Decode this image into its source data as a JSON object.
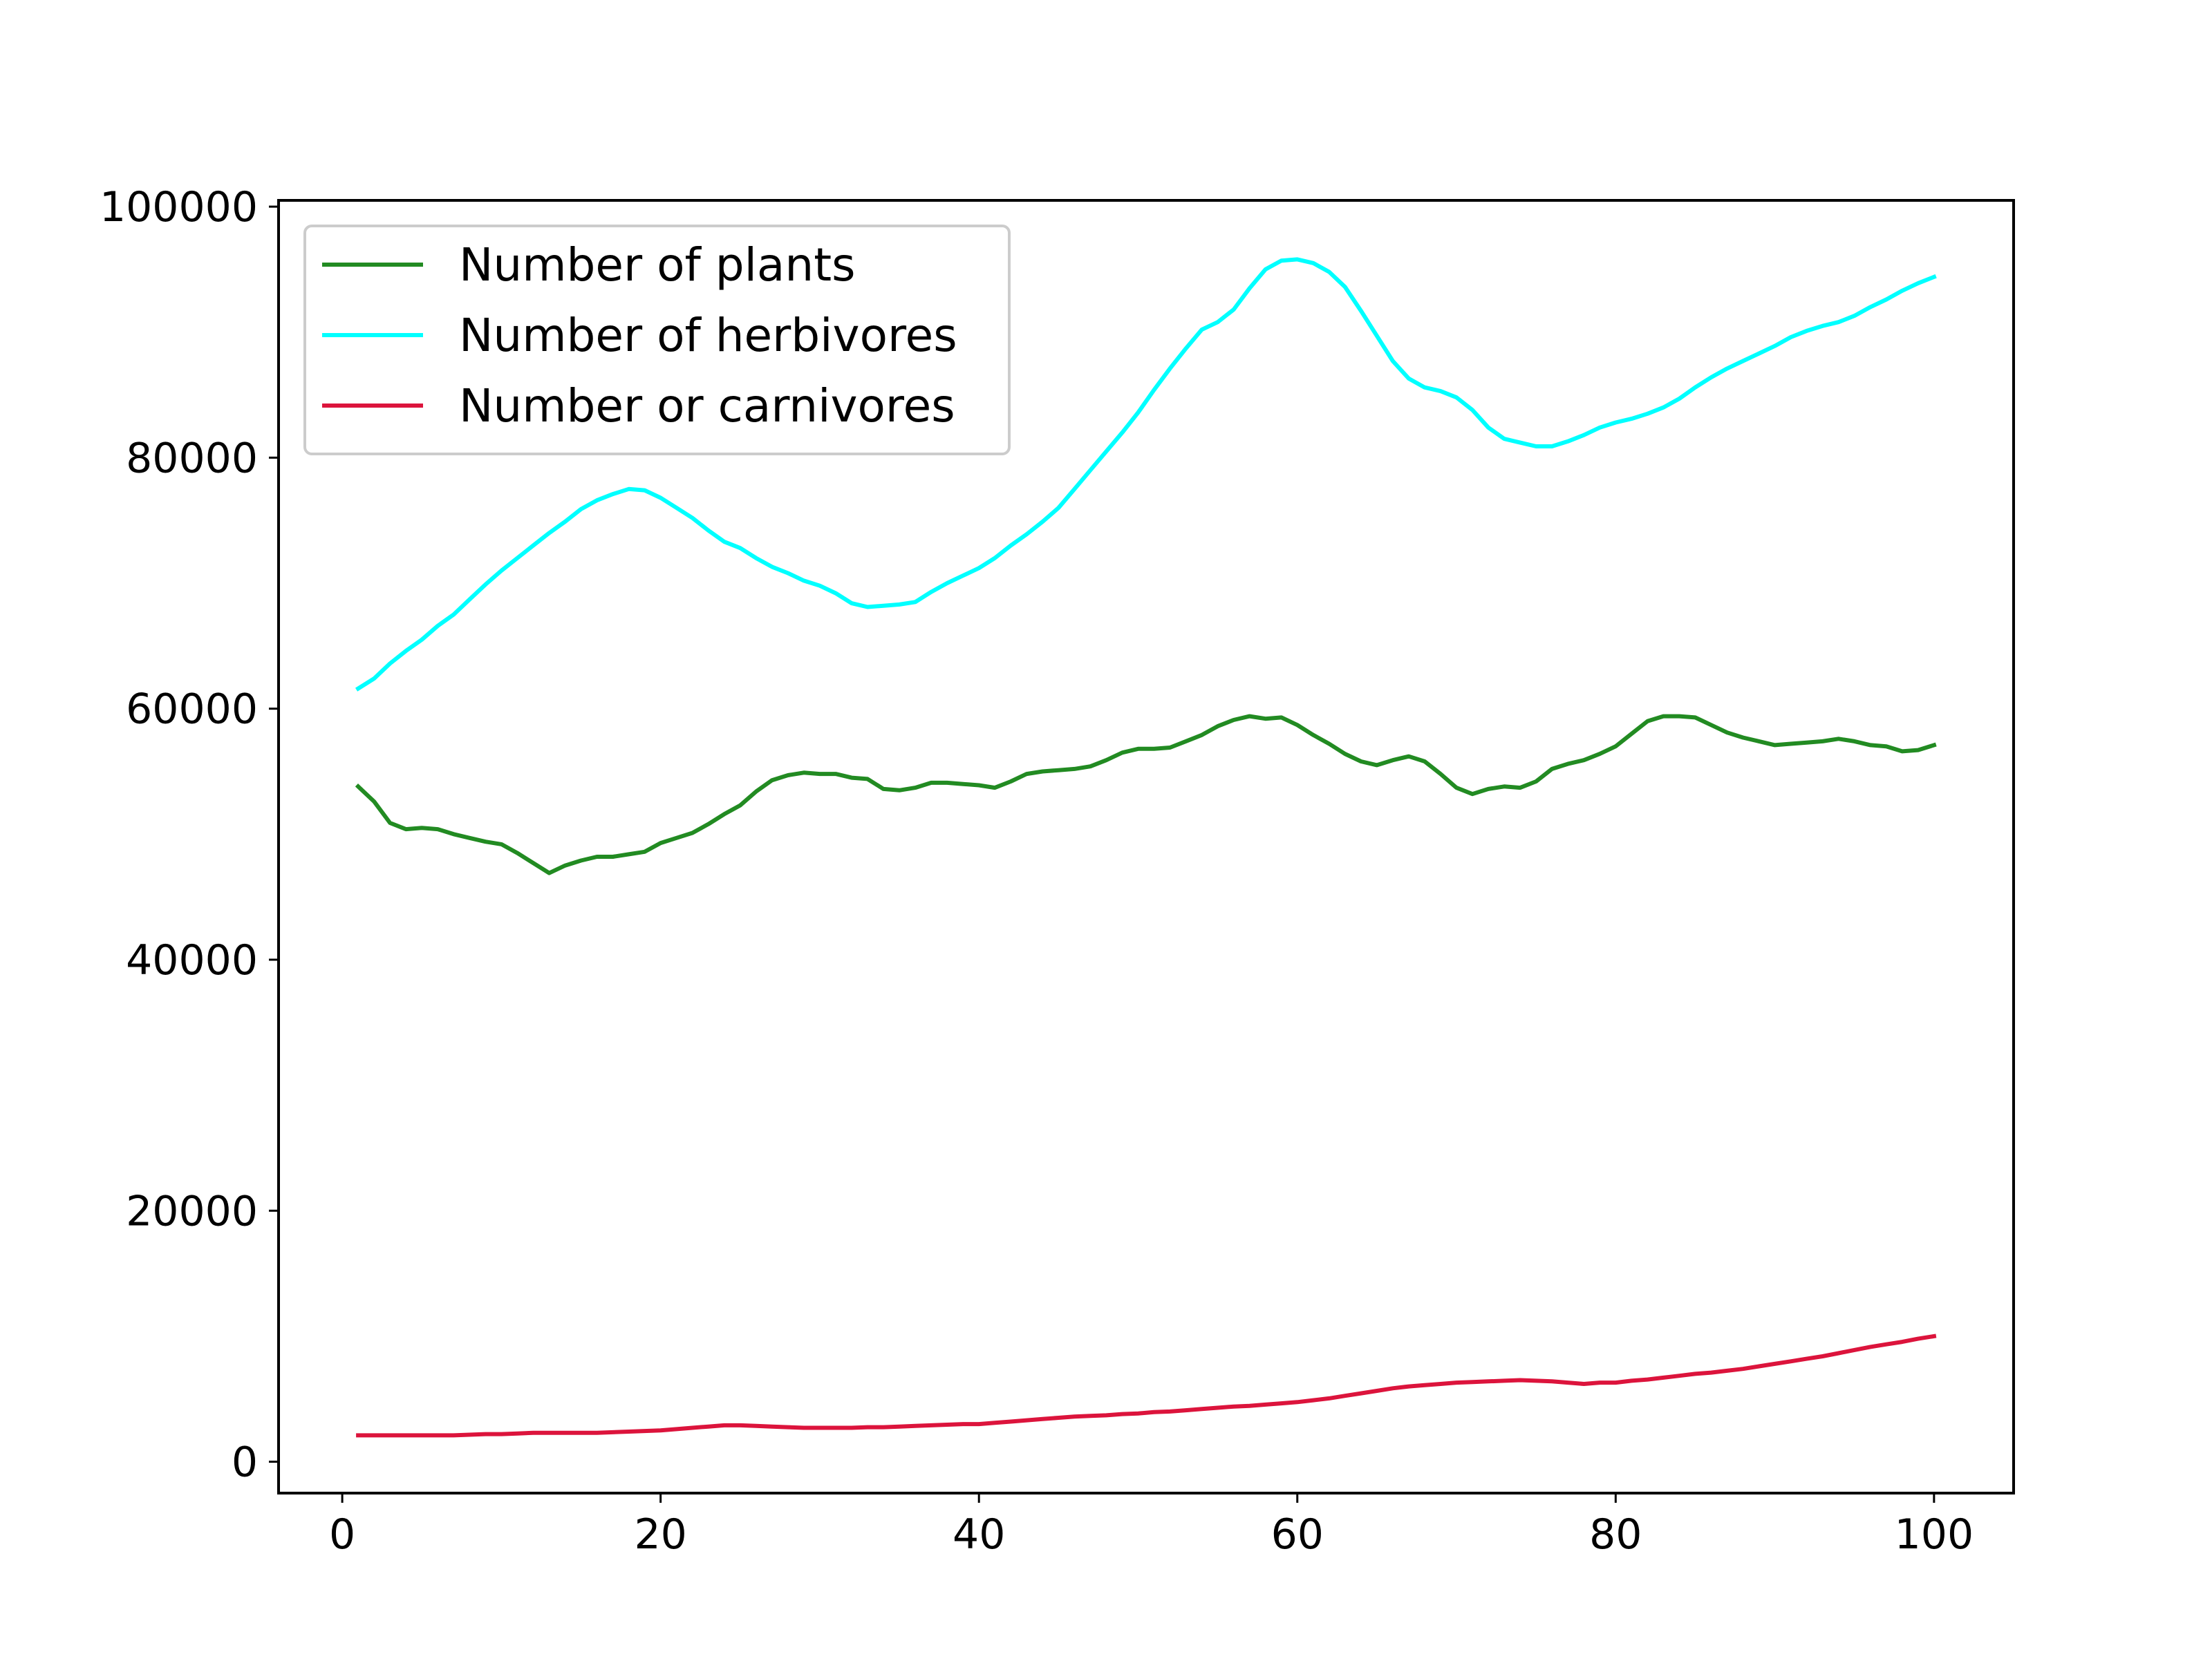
{
  "chart_data": {
    "type": "line",
    "title": "",
    "xlabel": "",
    "ylabel": "",
    "xlim": [
      -4,
      105
    ],
    "ylim": [
      -2500,
      100500
    ],
    "grid": false,
    "legend_position": "upper-left",
    "x_ticks": [
      0,
      20,
      40,
      60,
      80,
      100
    ],
    "x_tick_labels": [
      "0",
      "20",
      "40",
      "60",
      "80",
      "100"
    ],
    "y_ticks": [
      0,
      20000,
      40000,
      60000,
      80000,
      100000
    ],
    "y_tick_labels": [
      "0",
      "20000",
      "40000",
      "60000",
      "80000",
      "100000"
    ],
    "x": [
      1,
      2,
      3,
      4,
      5,
      6,
      7,
      8,
      9,
      10,
      11,
      12,
      13,
      14,
      15,
      16,
      17,
      18,
      19,
      20,
      21,
      22,
      23,
      24,
      25,
      26,
      27,
      28,
      29,
      30,
      31,
      32,
      33,
      34,
      35,
      36,
      37,
      38,
      39,
      40,
      41,
      42,
      43,
      44,
      45,
      46,
      47,
      48,
      49,
      50,
      51,
      52,
      53,
      54,
      55,
      56,
      57,
      58,
      59,
      60,
      61,
      62,
      63,
      64,
      65,
      66,
      67,
      68,
      69,
      70,
      71,
      72,
      73,
      74,
      75,
      76,
      77,
      78,
      79,
      80,
      81,
      82,
      83,
      84,
      85,
      86,
      87,
      88,
      89,
      90,
      91,
      92,
      93,
      94,
      95,
      96,
      97,
      98,
      99,
      100
    ],
    "series": [
      {
        "name": "Number of plants",
        "color": "#228b22",
        "values": [
          53800,
          52600,
          50900,
          50400,
          50500,
          50400,
          50000,
          49700,
          49400,
          49200,
          48500,
          47700,
          46900,
          47500,
          47900,
          48200,
          48200,
          48400,
          48600,
          49300,
          49700,
          50100,
          50800,
          51600,
          52300,
          53400,
          54300,
          54700,
          54900,
          54800,
          54800,
          54500,
          54400,
          53600,
          53500,
          53700,
          54100,
          54100,
          54000,
          53900,
          53700,
          54200,
          54800,
          55000,
          55100,
          55200,
          55400,
          55900,
          56500,
          56800,
          56800,
          56900,
          57400,
          57900,
          58600,
          59100,
          59400,
          59200,
          59300,
          58700,
          57900,
          57200,
          56400,
          55800,
          55500,
          55900,
          56200,
          55800,
          54800,
          53700,
          53200,
          53600,
          53800,
          53700,
          54200,
          55200,
          55600,
          55900,
          56400,
          57000,
          58000,
          59000,
          59400,
          59400,
          59300,
          58700,
          58100,
          57700,
          57400,
          57100,
          57200,
          57300,
          57400,
          57600,
          57400,
          57100,
          57000,
          56600,
          56700,
          57100
        ]
      },
      {
        "name": "Number of herbivores",
        "color": "#00ffff",
        "values": [
          61600,
          62400,
          63600,
          64600,
          65500,
          66600,
          67500,
          68700,
          69900,
          71000,
          72000,
          73000,
          74000,
          74900,
          75900,
          76600,
          77100,
          77500,
          77400,
          76800,
          76000,
          75200,
          74200,
          73300,
          72800,
          72000,
          71300,
          70800,
          70200,
          69800,
          69200,
          68400,
          68100,
          68200,
          68300,
          68500,
          69300,
          70000,
          70600,
          71200,
          72000,
          73000,
          73900,
          74900,
          76000,
          77500,
          79000,
          80500,
          82000,
          83600,
          85400,
          87100,
          88700,
          90200,
          90800,
          91800,
          93500,
          95000,
          95700,
          95800,
          95500,
          94800,
          93600,
          91700,
          89700,
          87700,
          86300,
          85600,
          85300,
          84800,
          83800,
          82400,
          81500,
          81200,
          80900,
          80900,
          81300,
          81800,
          82400,
          82800,
          83100,
          83500,
          84000,
          84700,
          85600,
          86400,
          87100,
          87700,
          88300,
          88900,
          89600,
          90100,
          90500,
          90800,
          91300,
          92000,
          92600,
          93300,
          93900,
          94400
        ]
      },
      {
        "name": "Number or carnivores",
        "color": "#dc143c",
        "values": [
          2100,
          2100,
          2100,
          2100,
          2100,
          2100,
          2100,
          2150,
          2200,
          2200,
          2250,
          2300,
          2300,
          2300,
          2300,
          2300,
          2350,
          2400,
          2450,
          2500,
          2600,
          2700,
          2800,
          2900,
          2900,
          2850,
          2800,
          2750,
          2700,
          2700,
          2700,
          2700,
          2750,
          2750,
          2800,
          2850,
          2900,
          2950,
          3000,
          3000,
          3100,
          3200,
          3300,
          3400,
          3500,
          3600,
          3650,
          3700,
          3800,
          3850,
          3950,
          4000,
          4100,
          4200,
          4300,
          4400,
          4450,
          4550,
          4650,
          4750,
          4900,
          5050,
          5250,
          5450,
          5650,
          5850,
          6000,
          6100,
          6200,
          6300,
          6350,
          6400,
          6450,
          6500,
          6450,
          6400,
          6300,
          6200,
          6300,
          6300,
          6450,
          6550,
          6700,
          6850,
          7000,
          7100,
          7250,
          7400,
          7600,
          7800,
          8000,
          8200,
          8400,
          8650,
          8900,
          9150,
          9350,
          9550,
          9800,
          10000
        ]
      }
    ]
  }
}
